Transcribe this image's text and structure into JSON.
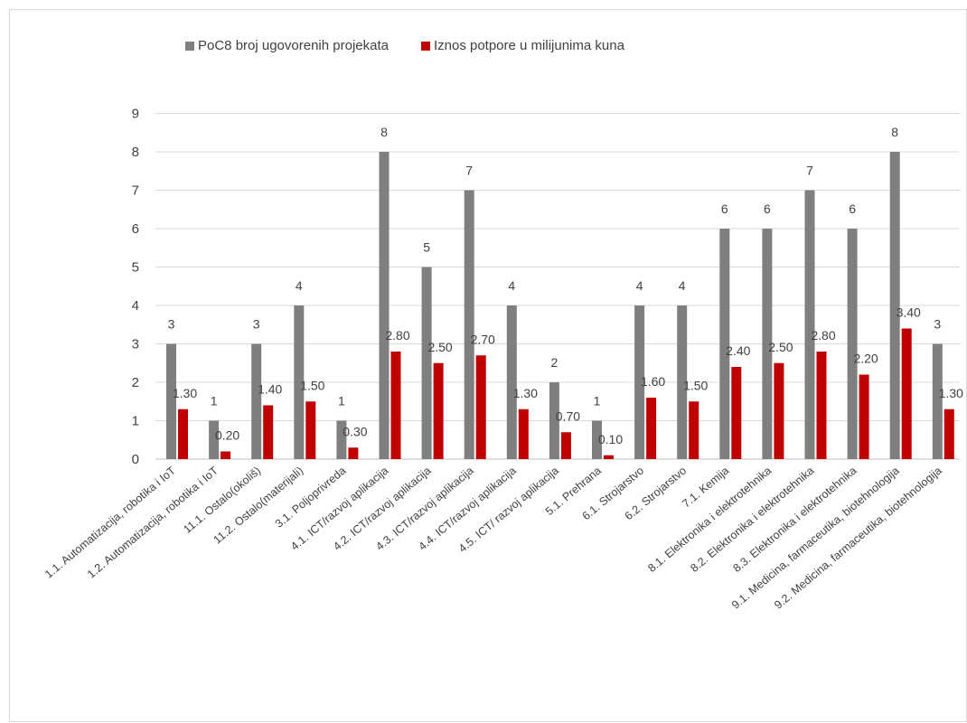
{
  "colors": {
    "series1": "#7f7f7f",
    "series2": "#c00000",
    "grid": "#d9d9d9",
    "text": "#404040"
  },
  "chart_data": {
    "type": "bar",
    "title": "",
    "xlabel": "",
    "ylabel": "",
    "ylim": [
      0,
      9
    ],
    "yticks": [
      "0",
      "1",
      "2",
      "3",
      "4",
      "5",
      "6",
      "7",
      "8",
      "9"
    ],
    "grid": true,
    "legend_position": "top",
    "categories": [
      "1.1. Automatizacija, robotika i IoT",
      "1.2. Automatizacija, robotika i IoT",
      "11.1. Ostalo(okoliš)",
      "11.2. Ostalo(materijali)",
      "3.1. Poljoprivreda",
      "4.1. ICT/razvoj aplikacija",
      "4.2. ICT/razvoj aplikacija",
      "4.3. ICT/razvoj aplikacija",
      "4.4. ICT/razvoj aplikacija",
      "4.5. ICT/ razvoj aplikacija",
      "5.1. Prehrana",
      "6.1. Strojarstvo",
      "6.2. Strojarstvo",
      "7.1. Kemija",
      "8.1. Elektronika i elektrotehnika",
      "8.2. Elektronika i elektrotehnika",
      "8.3. Elektronika i elektrotehnika",
      "9.1. Medicina, farmaceutika, biotehnologija",
      "9.2. Medicina, farmaceutika, biotehnologija"
    ],
    "series": [
      {
        "name": "PoC8 broj ugovorenih projekata",
        "values": [
          3,
          1,
          3,
          4,
          1,
          8,
          5,
          7,
          4,
          2,
          1,
          4,
          4,
          6,
          6,
          7,
          6,
          8,
          3
        ],
        "labels": [
          "3",
          "1",
          "3",
          "4",
          "1",
          "8",
          "5",
          "7",
          "4",
          "2",
          "1",
          "4",
          "4",
          "6",
          "6",
          "7",
          "6",
          "8",
          "3"
        ]
      },
      {
        "name": "Iznos potpore u milijunima kuna",
        "values": [
          1.3,
          0.2,
          1.4,
          1.5,
          0.3,
          2.8,
          2.5,
          2.7,
          1.3,
          0.7,
          0.1,
          1.6,
          1.5,
          2.4,
          2.5,
          2.8,
          2.2,
          3.4,
          1.3
        ],
        "labels": [
          "1.30",
          "0.20",
          "1.40",
          "1.50",
          "0.30",
          "2.80",
          "2.50",
          "2.70",
          "1.30",
          "0.70",
          "0.10",
          "1.60",
          "1.50",
          "2.40",
          "2.50",
          "2.80",
          "2.20",
          "3.40",
          "1.30"
        ]
      }
    ]
  }
}
